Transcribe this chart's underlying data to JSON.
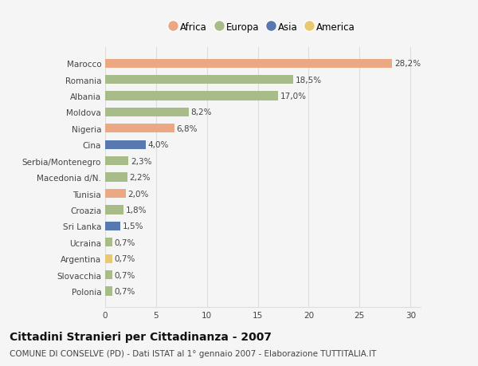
{
  "countries": [
    "Polonia",
    "Slovacchia",
    "Argentina",
    "Ucraina",
    "Sri Lanka",
    "Croazia",
    "Tunisia",
    "Macedonia d/N.",
    "Serbia/Montenegro",
    "Cina",
    "Nigeria",
    "Moldova",
    "Albania",
    "Romania",
    "Marocco"
  ],
  "values": [
    0.7,
    0.7,
    0.7,
    0.7,
    1.5,
    1.8,
    2.0,
    2.2,
    2.3,
    4.0,
    6.8,
    8.2,
    17.0,
    18.5,
    28.2
  ],
  "labels": [
    "0,7%",
    "0,7%",
    "0,7%",
    "0,7%",
    "1,5%",
    "1,8%",
    "2,0%",
    "2,2%",
    "2,3%",
    "4,0%",
    "6,8%",
    "8,2%",
    "17,0%",
    "18,5%",
    "28,2%"
  ],
  "continents": [
    "Europa",
    "Europa",
    "America",
    "Europa",
    "Asia",
    "Europa",
    "Africa",
    "Europa",
    "Europa",
    "Asia",
    "Africa",
    "Europa",
    "Europa",
    "Europa",
    "Africa"
  ],
  "colors": {
    "Africa": "#EBA882",
    "Europa": "#A8BC8A",
    "Asia": "#5878B0",
    "America": "#E8C870"
  },
  "legend_order": [
    "Africa",
    "Europa",
    "Asia",
    "America"
  ],
  "title": "Cittadini Stranieri per Cittadinanza - 2007",
  "subtitle": "COMUNE DI CONSELVE (PD) - Dati ISTAT al 1° gennaio 2007 - Elaborazione TUTTITALIA.IT",
  "xlim": [
    0,
    31
  ],
  "xticks": [
    0,
    5,
    10,
    15,
    20,
    25,
    30
  ],
  "bar_height": 0.55,
  "bg_color": "#f5f5f5",
  "plot_bg_color": "#f5f5f5",
  "grid_color": "#dddddd",
  "title_fontsize": 10,
  "subtitle_fontsize": 7.5,
  "label_fontsize": 7.5,
  "tick_fontsize": 7.5,
  "legend_fontsize": 8.5
}
